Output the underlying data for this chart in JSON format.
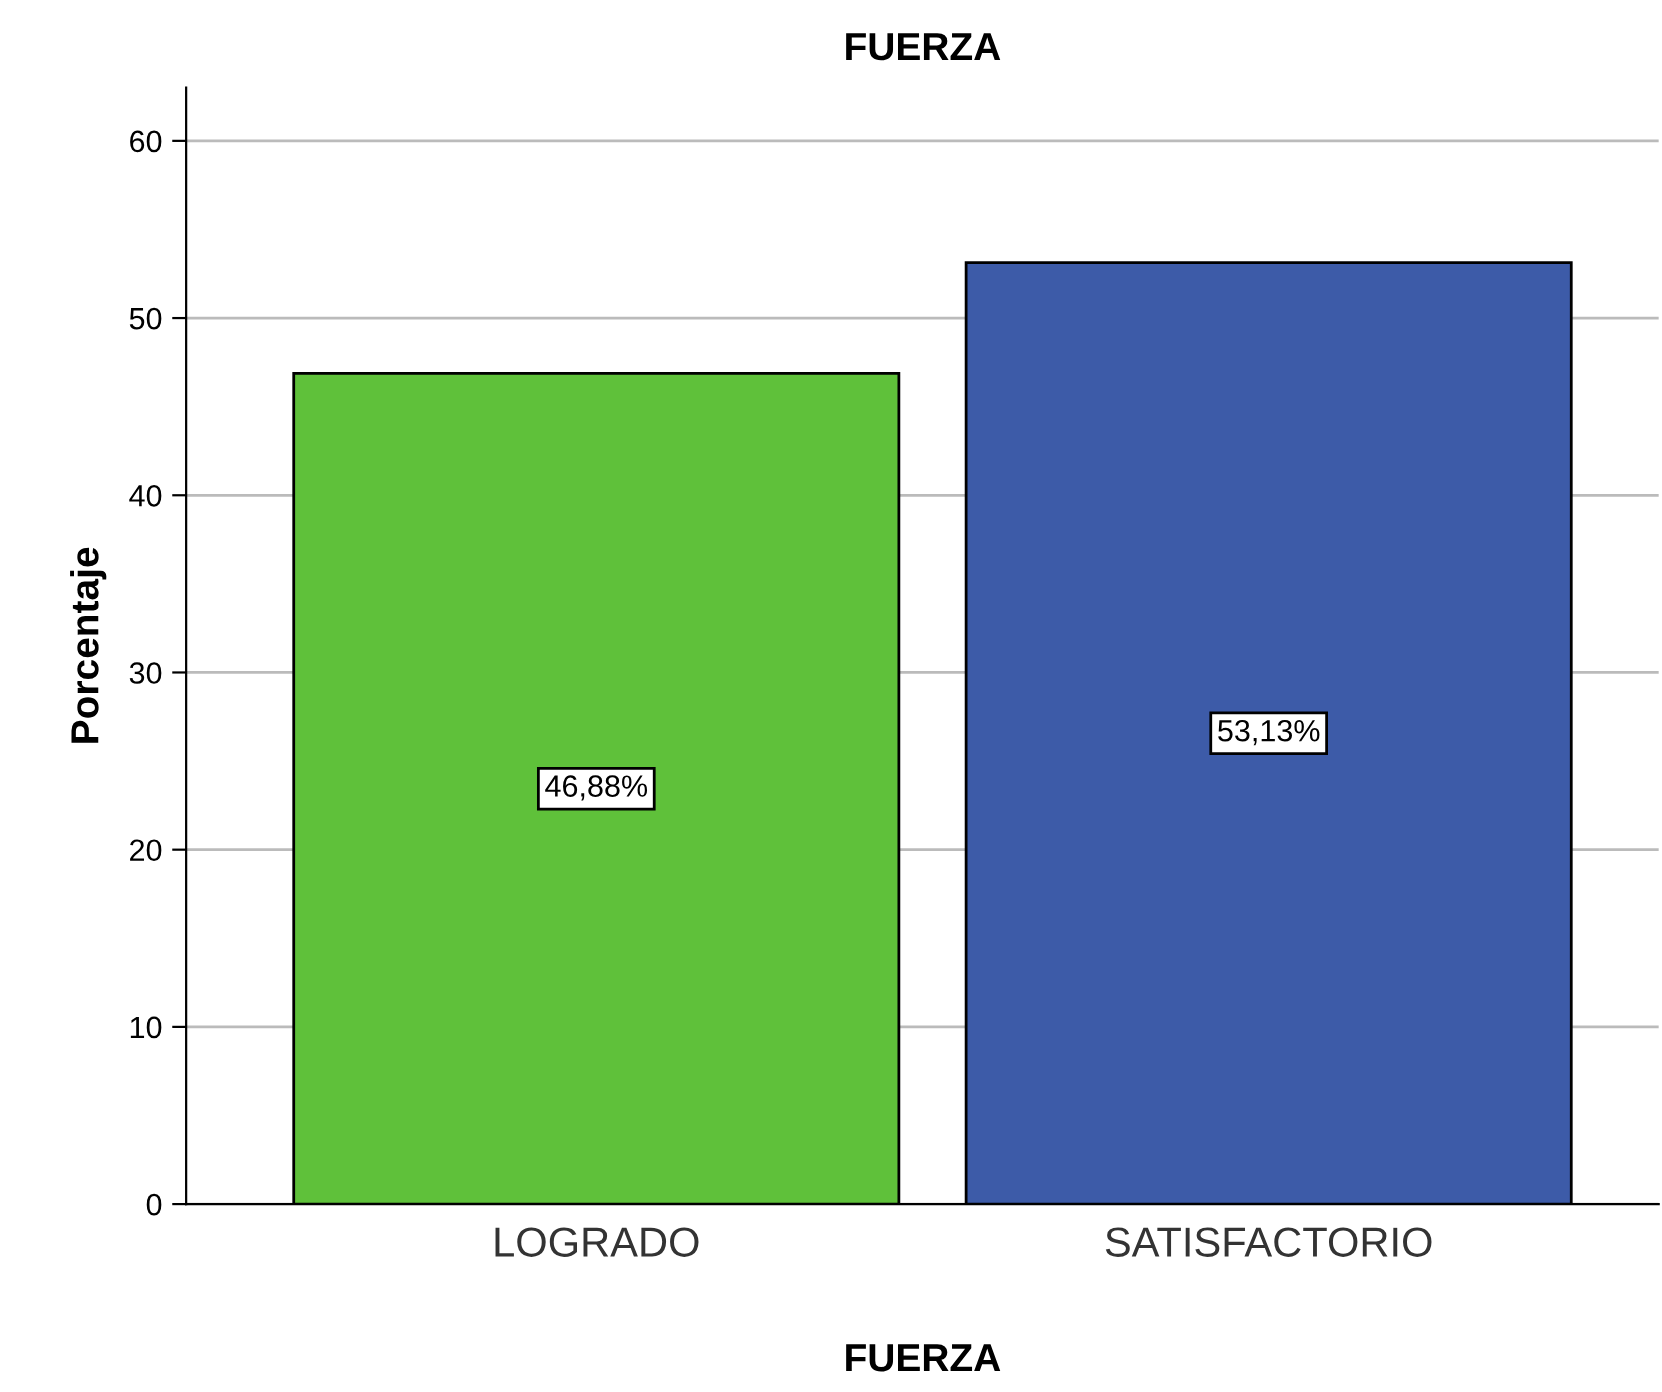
{
  "chart_data": {
    "type": "bar",
    "title": "FUERZA",
    "xlabel": "FUERZA",
    "ylabel": "Porcentaje",
    "categories": [
      "LOGRADO",
      "SATISFACTORIO"
    ],
    "values": [
      46.88,
      53.13
    ],
    "colors": [
      "#5fc13a",
      "#3d5ba8"
    ],
    "value_labels": [
      "46,88%",
      "53,13%"
    ],
    "ylim": [
      0,
      63
    ],
    "yticks": [
      0,
      10,
      20,
      30,
      40,
      50,
      60
    ],
    "grid": "y"
  }
}
